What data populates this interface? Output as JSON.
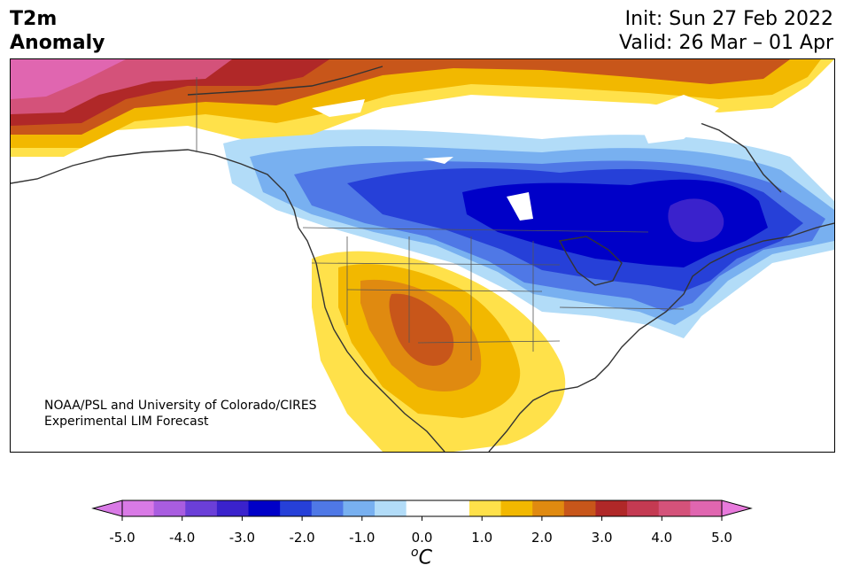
{
  "title": {
    "left_line1": "T2m",
    "left_line2": "Anomaly",
    "init": "Init: Sun 27 Feb 2022",
    "valid": "Valid: 26 Mar – 01 Apr"
  },
  "credit": {
    "line1": "NOAA/PSL and University of Colorado/CIRES",
    "line2": "Experimental LIM Forecast"
  },
  "colorbar": {
    "units_base": "C",
    "units_sup": "o",
    "ticks": [
      "-5.0",
      "-4.0",
      "-3.0",
      "-2.0",
      "-1.0",
      "0.0",
      "1.0",
      "2.0",
      "3.0",
      "4.0",
      "5.0"
    ],
    "colors": [
      "#d97ae6",
      "#a95de0",
      "#6b3fd8",
      "#3a22cc",
      "#0000c8",
      "#2640d8",
      "#4f78e6",
      "#78b0f0",
      "#b2dcf8",
      "#ffffff",
      "#ffffff",
      "#ffe14a",
      "#f2b800",
      "#e08a10",
      "#c8561a",
      "#b02828",
      "#c43a52",
      "#d4527a",
      "#e066b0"
    ],
    "extend_low": "#d97ae6",
    "extend_high": "#e87adc"
  },
  "map_colors": {
    "warm_yellow": "#ffe14a",
    "warm_gold": "#f2b800",
    "warm_orange": "#e08a10",
    "warm_dark_orange": "#c8561a",
    "warm_red": "#b02828",
    "warm_crimson": "#c43a52",
    "warm_pink": "#d4527a",
    "warm_magenta": "#e066b0",
    "cold_light": "#b2dcf8",
    "cold_sky": "#78b0f0",
    "cold_mid": "#4f78e6",
    "cold_blue": "#2640d8",
    "cold_deep": "#0000c8",
    "cold_indigo": "#3a22cc",
    "coast": "#333333"
  }
}
